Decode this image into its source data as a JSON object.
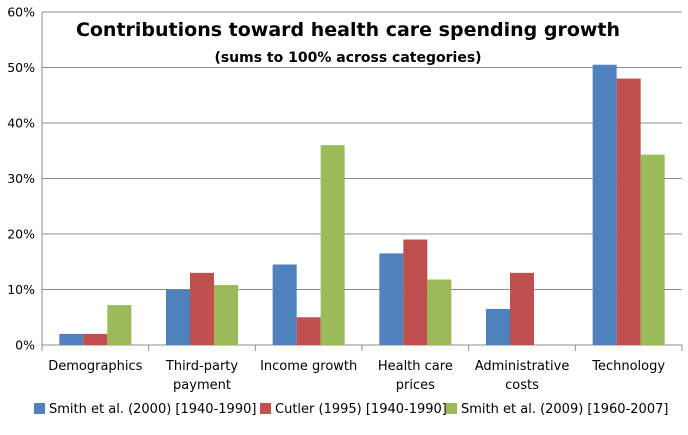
{
  "chart_data": {
    "type": "bar",
    "title": "Contributions toward health care spending growth",
    "subtitle": "(sums to 100% across categories)",
    "xlabel": "",
    "ylabel": "",
    "ylim": [
      0,
      60
    ],
    "y_ticks": [
      "0%",
      "10%",
      "20%",
      "30%",
      "40%",
      "50%",
      "60%"
    ],
    "y_tick_values": [
      0,
      10,
      20,
      30,
      40,
      50,
      60
    ],
    "categories": [
      [
        "Demographics"
      ],
      [
        "Third-party",
        "payment"
      ],
      [
        "Income growth"
      ],
      [
        "Health care",
        "prices"
      ],
      [
        "Administrative",
        "costs"
      ],
      [
        "Technology"
      ]
    ],
    "series": [
      {
        "name": "Smith et al. (2000) [1940-1990]",
        "color": "#4f81bd",
        "values": [
          2,
          10,
          14.5,
          16.5,
          6.5,
          50.5
        ]
      },
      {
        "name": "Cutler (1995) [1940-1990]",
        "color": "#c0504d",
        "values": [
          2,
          13,
          5,
          19,
          13,
          48
        ]
      },
      {
        "name": "Smith et al. (2009) [1960-2007]",
        "color": "#9bbb59",
        "values": [
          7.2,
          10.8,
          36,
          11.8,
          0,
          34.3
        ]
      }
    ],
    "grid": true,
    "legend_position": "bottom"
  }
}
